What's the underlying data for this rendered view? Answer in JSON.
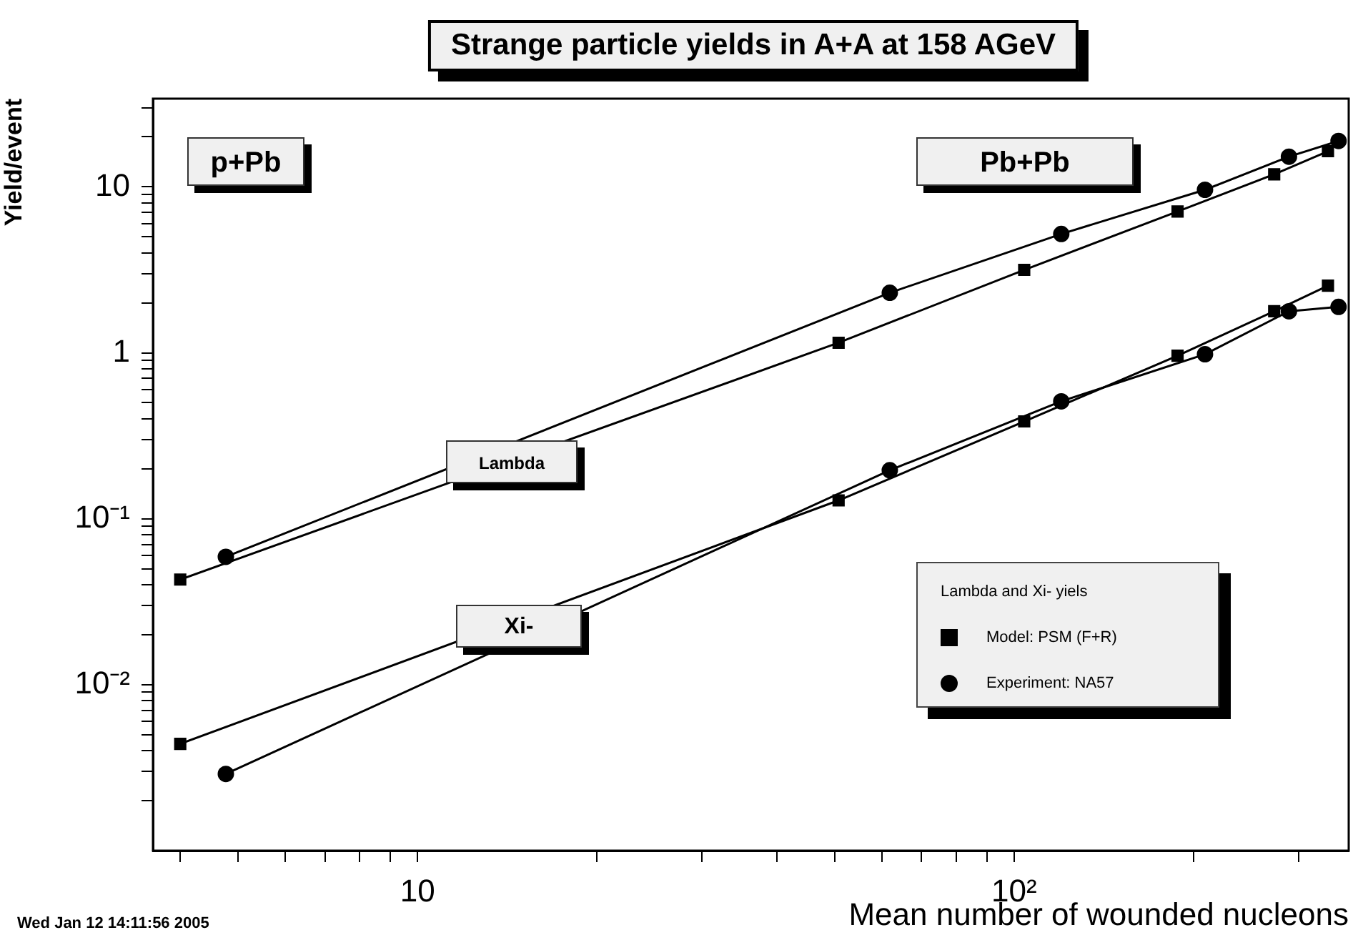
{
  "chart_data": {
    "type": "line",
    "title": "Strange particle yields in A+A at 158 AGeV",
    "xlabel": "Mean number of wounded nucleons",
    "ylabel": "Yield/event",
    "legend_title": "Lambda and Xi- yiels",
    "log": "xy",
    "xlim": [
      3.6,
      364
    ],
    "ylim": [
      0.001,
      34
    ],
    "xticks": [
      {
        "value": 4,
        "label": null
      },
      {
        "value": 5,
        "label": null
      },
      {
        "value": 6,
        "label": null
      },
      {
        "value": 7,
        "label": null
      },
      {
        "value": 8,
        "label": null
      },
      {
        "value": 9,
        "label": null
      },
      10,
      {
        "value": 20,
        "label": null
      },
      {
        "value": 30,
        "label": null
      },
      {
        "value": 40,
        "label": null
      },
      {
        "value": 50,
        "label": null
      },
      {
        "value": 60,
        "label": null
      },
      {
        "value": 70,
        "label": null
      },
      {
        "value": 80,
        "label": null
      },
      {
        "value": 90,
        "label": null
      },
      {
        "value": 100,
        "label": "10²"
      },
      {
        "value": 200,
        "label": null
      },
      {
        "value": 300,
        "label": null
      }
    ],
    "yticks": [
      {
        "value": 0.002,
        "label": null
      },
      {
        "value": 0.003,
        "label": null
      },
      {
        "value": 0.004,
        "label": null
      },
      {
        "value": 0.005,
        "label": null
      },
      {
        "value": 0.006,
        "label": null
      },
      {
        "value": 0.007,
        "label": null
      },
      {
        "value": 0.008,
        "label": null
      },
      {
        "value": 0.009,
        "label": null
      },
      {
        "value": 0.01,
        "label": "10⁻²"
      },
      {
        "value": 0.02,
        "label": null
      },
      {
        "value": 0.03,
        "label": null
      },
      {
        "value": 0.04,
        "label": null
      },
      {
        "value": 0.05,
        "label": null
      },
      {
        "value": 0.06,
        "label": null
      },
      {
        "value": 0.07,
        "label": null
      },
      {
        "value": 0.08,
        "label": null
      },
      {
        "value": 0.09,
        "label": null
      },
      {
        "value": 0.1,
        "label": "10⁻¹"
      },
      {
        "value": 0.2,
        "label": null
      },
      {
        "value": 0.3,
        "label": null
      },
      {
        "value": 0.4,
        "label": null
      },
      {
        "value": 0.5,
        "label": null
      },
      {
        "value": 0.6,
        "label": null
      },
      {
        "value": 0.7,
        "label": null
      },
      {
        "value": 0.8,
        "label": null
      },
      {
        "value": 0.9,
        "label": null
      },
      1,
      {
        "value": 2,
        "label": null
      },
      {
        "value": 3,
        "label": null
      },
      {
        "value": 4,
        "label": null
      },
      {
        "value": 5,
        "label": null
      },
      {
        "value": 6,
        "label": null
      },
      {
        "value": 7,
        "label": null
      },
      {
        "value": 8,
        "label": null
      },
      {
        "value": 9,
        "label": null
      },
      10,
      {
        "value": 20,
        "label": null
      },
      {
        "value": 30,
        "label": null
      }
    ],
    "legend": "bottom right",
    "line_style": "solid",
    "series": [
      {
        "name": "Model: PSM (F+R)",
        "color": "#000000",
        "marker": "square",
        "x": [
          4.0,
          50.8,
          104,
          188,
          273,
          336
        ],
        "values": [
          0.043,
          1.15,
          3.16,
          7.1,
          11.9,
          16.4
        ]
      },
      {
        "name": "Experiment: NA57",
        "color": "#000000",
        "marker": "circle",
        "x": [
          4.77,
          61.9,
          120,
          209,
          289,
          350
        ],
        "values": [
          0.059,
          2.3,
          5.2,
          9.6,
          15.2,
          18.9
        ]
      },
      {
        "color": "#000000",
        "marker": "square",
        "x": [
          4.0,
          50.8,
          104,
          188,
          273,
          336
        ],
        "values": [
          0.0044,
          0.129,
          0.386,
          0.96,
          1.78,
          2.54
        ]
      },
      {
        "color": "#000000",
        "marker": "circle",
        "x": [
          4.77,
          61.9,
          120,
          209,
          289,
          350
        ],
        "values": [
          0.0029,
          0.196,
          0.51,
          0.98,
          1.78,
          1.89
        ]
      }
    ],
    "annotations": [
      "p+Pb",
      "Pb+Pb",
      "Lambda",
      "Xi-",
      "Wed Jan 12 14:11:56 2005"
    ]
  }
}
